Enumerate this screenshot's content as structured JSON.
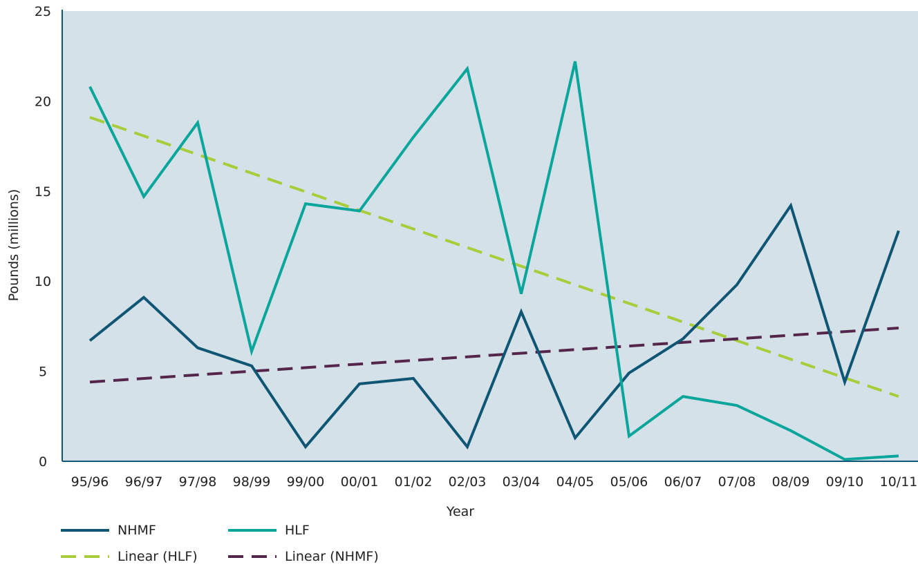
{
  "chart_data": {
    "type": "line",
    "categories": [
      "95/96",
      "96/97",
      "97/98",
      "98/99",
      "99/00",
      "00/01",
      "01/02",
      "02/03",
      "03/04",
      "04/05",
      "05/06",
      "06/07",
      "07/08",
      "08/09",
      "09/10",
      "10/11"
    ],
    "series": [
      {
        "name": "NHMF",
        "key": "nhmf",
        "values": [
          6.7,
          9.1,
          6.3,
          5.3,
          0.8,
          4.3,
          4.6,
          0.8,
          8.3,
          1.3,
          4.9,
          6.8,
          9.8,
          14.2,
          4.4,
          12.8
        ],
        "color": "#0f5574",
        "style": "solid"
      },
      {
        "name": "HLF",
        "key": "hlf",
        "values": [
          20.8,
          14.7,
          18.8,
          6.1,
          14.3,
          13.9,
          18.0,
          21.8,
          9.3,
          22.2,
          1.4,
          3.6,
          3.1,
          1.7,
          0.1,
          0.3
        ],
        "color": "#0aa59b",
        "style": "solid"
      }
    ],
    "trendlines": [
      {
        "name": "Linear (HLF)",
        "key": "linhlf",
        "start": 19.1,
        "end": 3.6,
        "color": "#a9cc3a",
        "style": "dashed"
      },
      {
        "name": "Linear (NHMF)",
        "key": "linnhmf",
        "start": 4.4,
        "end": 7.4,
        "color": "#55264c",
        "style": "dashed"
      }
    ],
    "xlabel": "Year",
    "ylabel": "Pounds (millions)",
    "ylim": [
      0,
      25
    ],
    "yticks": [
      0,
      5,
      10,
      15,
      20,
      25
    ],
    "plot_background": "#d5e1e8",
    "axis_color": "#0f5574",
    "grid": false,
    "legend": {
      "placement": "bottom-left",
      "entries": [
        {
          "label": "NHMF",
          "color": "#0f5574",
          "style": "solid"
        },
        {
          "label": "HLF",
          "color": "#0aa59b",
          "style": "solid"
        },
        {
          "label": "Linear (HLF)",
          "color": "#a9cc3a",
          "style": "dashed"
        },
        {
          "label": "Linear (NHMF)",
          "color": "#55264c",
          "style": "dashed"
        }
      ]
    }
  }
}
